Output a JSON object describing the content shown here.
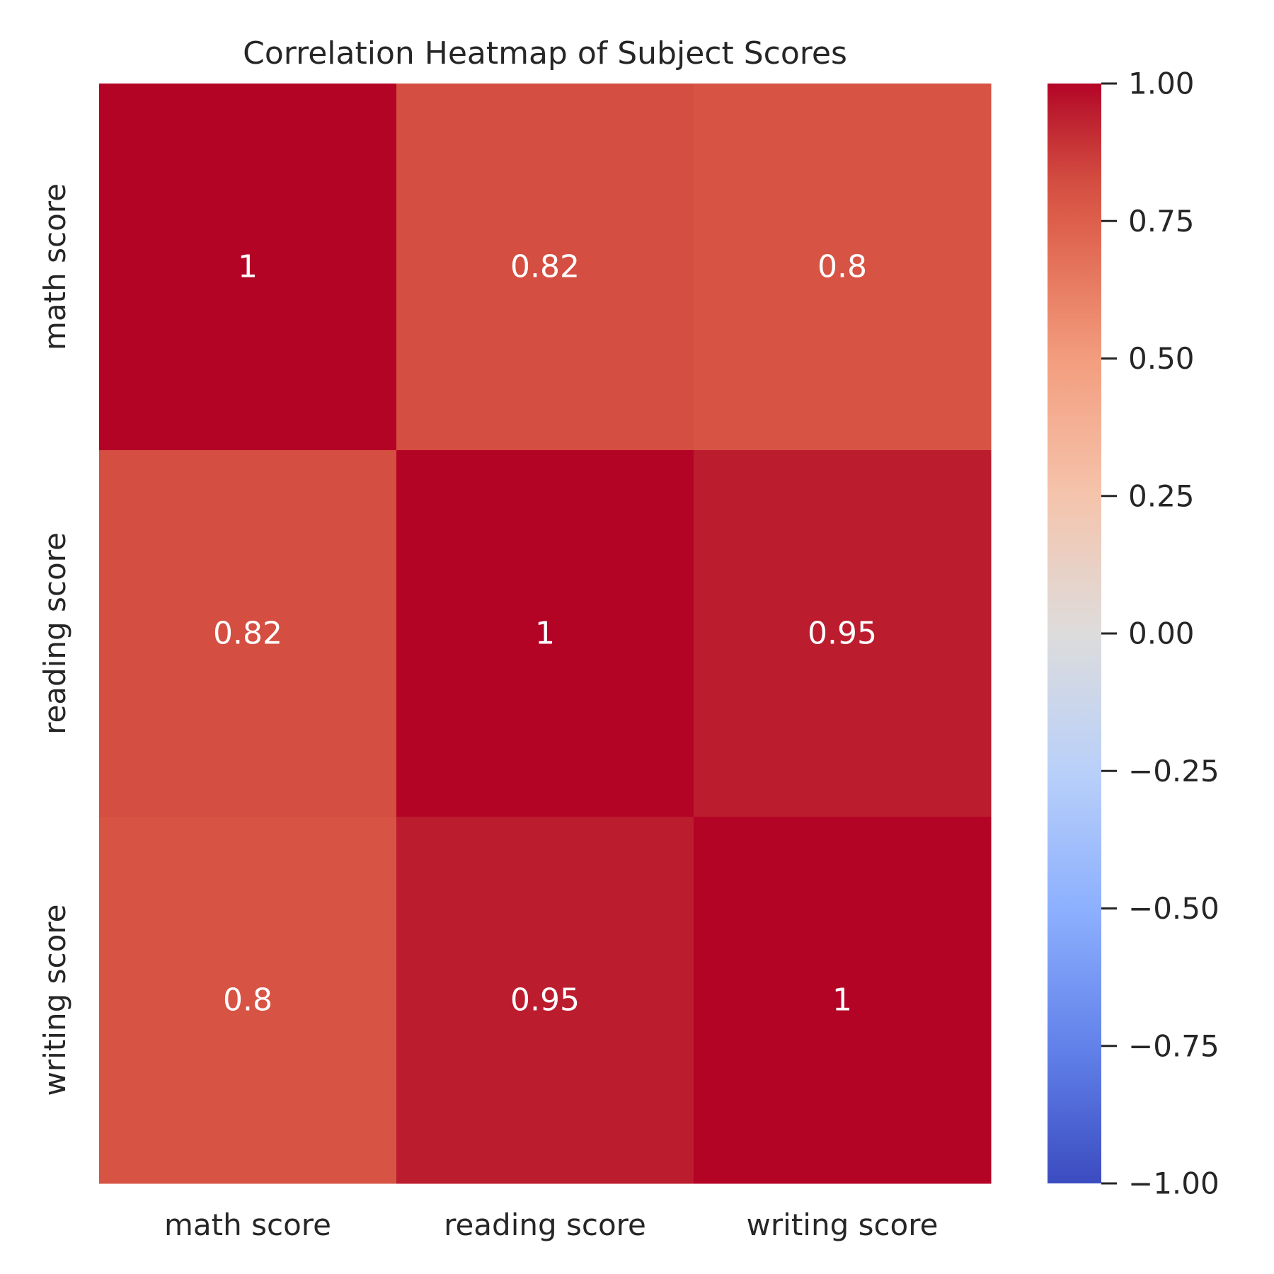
{
  "chart_data": {
    "type": "heatmap",
    "title": "Correlation Heatmap of Subject Scores",
    "row_labels": [
      "math score",
      "reading score",
      "writing score"
    ],
    "col_labels": [
      "math score",
      "reading score",
      "writing score"
    ],
    "values": [
      [
        1.0,
        0.82,
        0.8
      ],
      [
        0.82,
        1.0,
        0.95
      ],
      [
        0.8,
        0.95,
        1.0
      ]
    ],
    "annotations": [
      [
        "1",
        "0.82",
        "0.8"
      ],
      [
        "0.82",
        "1",
        "0.95"
      ],
      [
        "0.8",
        "0.95",
        "1"
      ]
    ],
    "colormap": "coolwarm",
    "vmin": -1.0,
    "vmax": 1.0,
    "colorbar_ticks": [
      1.0,
      0.75,
      0.5,
      0.25,
      0.0,
      -0.25,
      -0.5,
      -0.75,
      -1.0
    ],
    "colorbar_tick_labels": [
      "1.00",
      "0.75",
      "0.50",
      "0.25",
      "0.00",
      "−0.25",
      "−0.50",
      "−0.75",
      "−1.00"
    ],
    "annotation_color": "#ffffff",
    "text_color": "#262626",
    "colormap_stops": [
      {
        "value": -1.0,
        "color": "#3b4cc0"
      },
      {
        "value": -0.75,
        "color": "#6282ea"
      },
      {
        "value": -0.5,
        "color": "#8db0fe"
      },
      {
        "value": -0.25,
        "color": "#b9d0f9"
      },
      {
        "value": 0.0,
        "color": "#dddcdc"
      },
      {
        "value": 0.25,
        "color": "#f5c4ac"
      },
      {
        "value": 0.5,
        "color": "#f39d7e"
      },
      {
        "value": 0.75,
        "color": "#dd5f4b"
      },
      {
        "value": 0.82,
        "color": "#d44e41"
      },
      {
        "value": 0.95,
        "color": "#bb1c2e"
      },
      {
        "value": 1.0,
        "color": "#b40426"
      }
    ]
  }
}
